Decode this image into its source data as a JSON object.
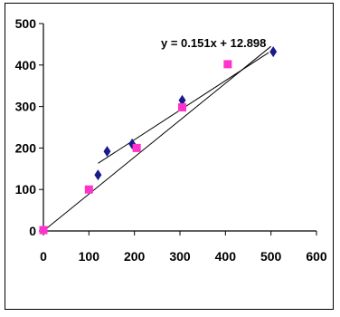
{
  "chart_data": {
    "type": "scatter",
    "title": "",
    "xlabel": "",
    "ylabel": "",
    "xlim": [
      0,
      600
    ],
    "ylim": [
      0,
      500
    ],
    "x_ticks": [
      0,
      100,
      200,
      300,
      400,
      500,
      600
    ],
    "y_ticks": [
      0,
      100,
      200,
      300,
      400,
      500
    ],
    "x_tick_labels": [
      "0",
      "100",
      "200",
      "300",
      "400",
      "500",
      "600"
    ],
    "y_tick_labels": [
      "0",
      "100",
      "200",
      "300",
      "400",
      "500"
    ],
    "grid": false,
    "legend": "none",
    "series": [
      {
        "marker": "diamond",
        "color": "#1a1a8c",
        "x": [
          120,
          140,
          195,
          305,
          505
        ],
        "y": [
          135,
          192,
          210,
          315,
          432
        ]
      },
      {
        "marker": "square",
        "color": "#ff33cc",
        "x": [
          0,
          100,
          205,
          305,
          405
        ],
        "y": [
          2,
          100,
          200,
          298,
          402
        ]
      }
    ],
    "trendlines": [
      {
        "x": [
          0,
          500
        ],
        "y": [
          0,
          445
        ]
      },
      {
        "x": [
          120,
          495
        ],
        "y": [
          163,
          430
        ]
      }
    ],
    "equation": "y = 0.151x + 12.898"
  }
}
